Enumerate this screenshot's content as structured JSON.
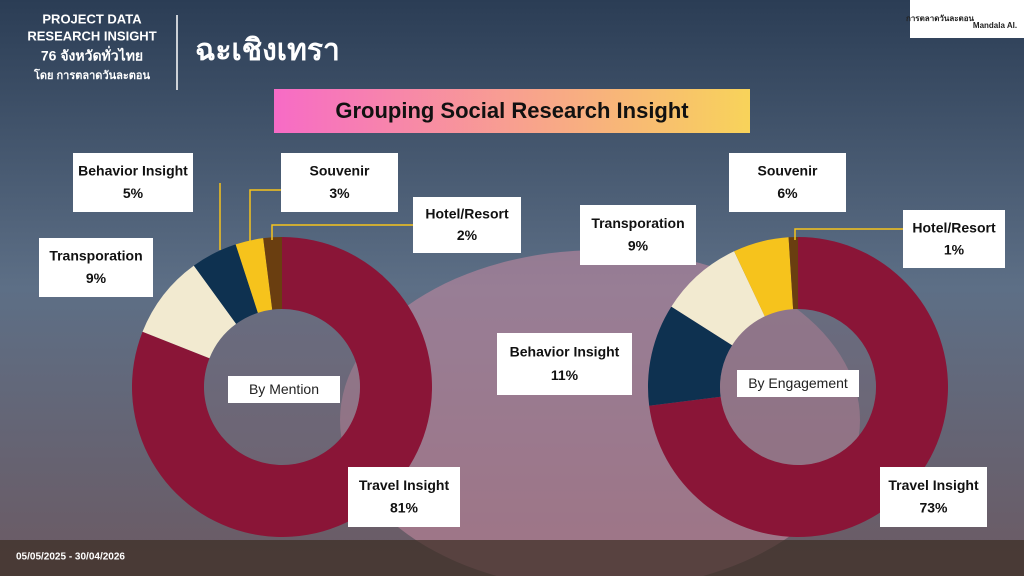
{
  "header": {
    "project": "PROJECT DATA",
    "research": "RESEARCH INSIGHT",
    "provinces": "76 จังหวัดทั่วไทย",
    "by": "โดย การตลาดวันละตอน",
    "province": "ฉะเชิงเทรา",
    "logo": "การตลาดวันละตอน",
    "partner": "Mandala AI."
  },
  "banner": "Grouping Social Research Insight",
  "date_range": "05/05/2025 - 30/04/2026",
  "chart_data": [
    {
      "type": "pie",
      "title": "By Mention",
      "categories": [
        "Travel Insight",
        "Transporation",
        "Behavior Insight",
        "Souvenir",
        "Hotel/Resort"
      ],
      "values": [
        81,
        9,
        5,
        3,
        2
      ],
      "value_labels": [
        "81%",
        "9%",
        "5%",
        "3%",
        "2%"
      ],
      "colors": [
        "#8a1537",
        "#f2ead0",
        "#0e3150",
        "#f6c31c",
        "#6a3e10"
      ]
    },
    {
      "type": "pie",
      "title": "By Engagement",
      "categories": [
        "Travel Insight",
        "Behavior Insight",
        "Transporation",
        "Souvenir",
        "Hotel/Resort"
      ],
      "values": [
        73,
        11,
        9,
        6,
        1
      ],
      "value_labels": [
        "73%",
        "11%",
        "9%",
        "6%",
        "1%"
      ],
      "colors": [
        "#8a1537",
        "#0e3150",
        "#f2ead0",
        "#f6c31c",
        "#6a3e10"
      ]
    }
  ]
}
